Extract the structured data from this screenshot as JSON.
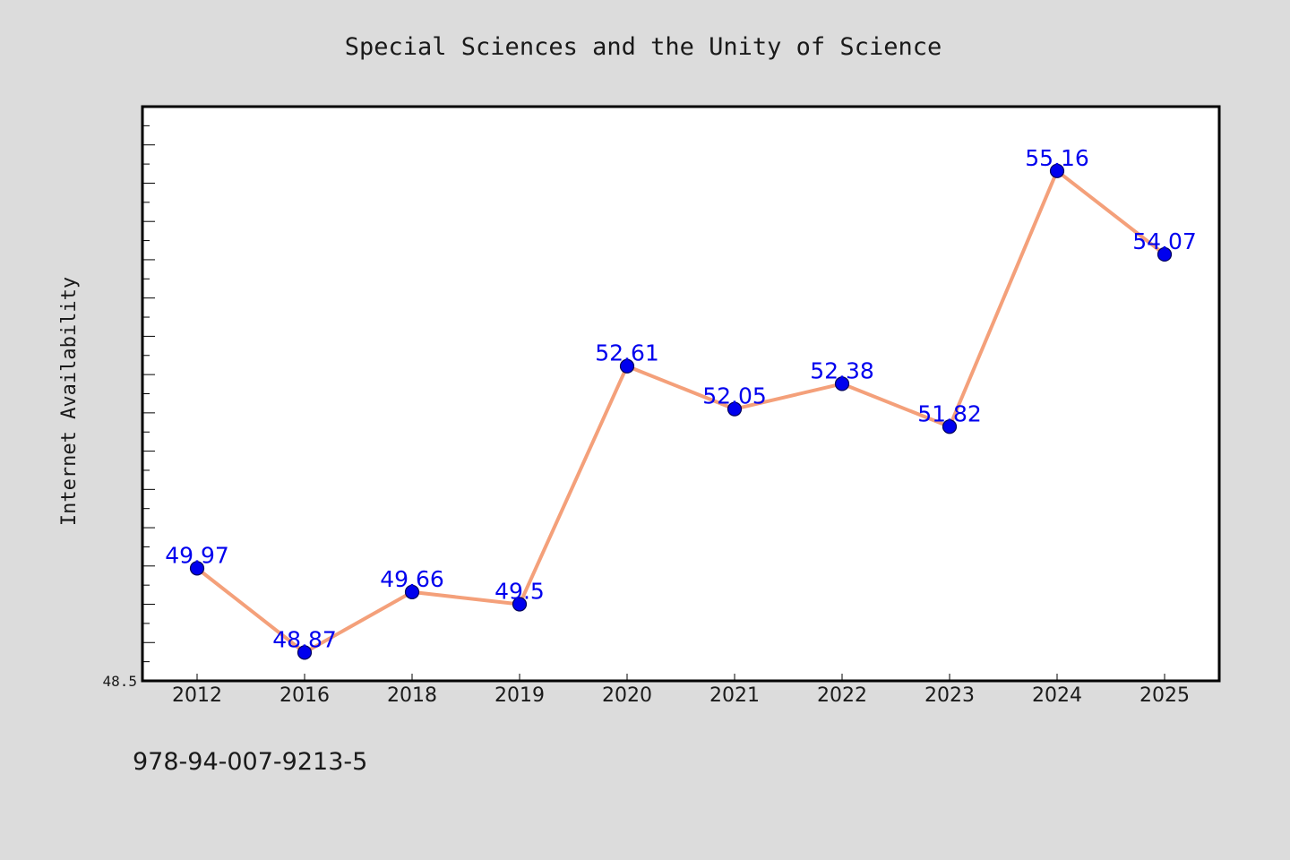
{
  "chart_data": {
    "type": "line",
    "title": "Special Sciences and the Unity of Science",
    "ylabel": "Internet Availability",
    "xlabel": "",
    "categories": [
      "2012",
      "2016",
      "2018",
      "2019",
      "2020",
      "2021",
      "2022",
      "2023",
      "2024",
      "2025"
    ],
    "series": [
      {
        "values": [
          49.97,
          48.87,
          49.66,
          49.5,
          52.61,
          52.05,
          52.38,
          51.82,
          55.16,
          54.07
        ],
        "labels": [
          "49.97",
          "48.87",
          "49.66",
          "49.5",
          "52.61",
          "52.05",
          "52.38",
          "51.82",
          "55.16",
          "54.07"
        ],
        "line_color": "#f4a07a",
        "marker_color": "#0000ee",
        "label_color": "#0000ee"
      }
    ],
    "ylim": [
      48.5,
      56.0
    ],
    "yticks_labeled": [
      "48.5"
    ],
    "grid": false,
    "legend": "none"
  },
  "footer_note": "978-94-007-9213-5"
}
